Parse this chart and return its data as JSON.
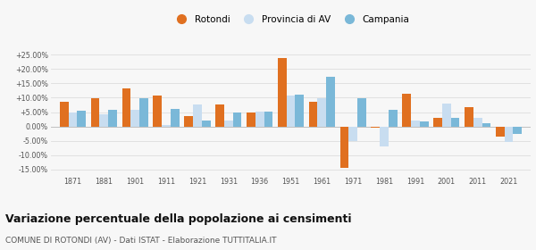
{
  "years": [
    1871,
    1881,
    1901,
    1911,
    1921,
    1931,
    1936,
    1951,
    1961,
    1971,
    1981,
    1991,
    2001,
    2011,
    2021
  ],
  "rotondi": [
    8.7,
    9.8,
    13.3,
    10.7,
    3.5,
    7.8,
    4.7,
    24.0,
    8.5,
    -14.5,
    -0.5,
    11.5,
    3.0,
    6.8,
    -3.5
  ],
  "provincia": [
    5.0,
    4.3,
    5.7,
    0.5,
    7.5,
    2.0,
    5.2,
    10.8,
    9.8,
    -5.2,
    -7.0,
    2.0,
    8.0,
    3.0,
    -5.5
  ],
  "campania": [
    5.5,
    5.8,
    9.8,
    6.2,
    2.0,
    5.0,
    5.2,
    11.0,
    17.2,
    9.8,
    5.8,
    1.7,
    3.0,
    1.0,
    -2.5
  ],
  "color_rotondi": "#e07020",
  "color_provincia": "#c8ddf0",
  "color_campania": "#7ab8d8",
  "title": "Variazione percentuale della popolazione ai censimenti",
  "subtitle": "COMUNE DI ROTONDI (AV) - Dati ISTAT - Elaborazione TUTTITALIA.IT",
  "ylim": [
    -17,
    28
  ],
  "yticks": [
    -15,
    -10,
    -5,
    0,
    5,
    10,
    15,
    20,
    25
  ],
  "ytick_labels": [
    "-15.00%",
    "-10.00%",
    "-5.00%",
    "0.00%",
    "+5.00%",
    "+10.00%",
    "+15.00%",
    "+20.00%",
    "+25.00%"
  ],
  "bar_width": 0.28,
  "legend_labels": [
    "Rotondi",
    "Provincia di AV",
    "Campania"
  ],
  "background_color": "#f7f7f7"
}
